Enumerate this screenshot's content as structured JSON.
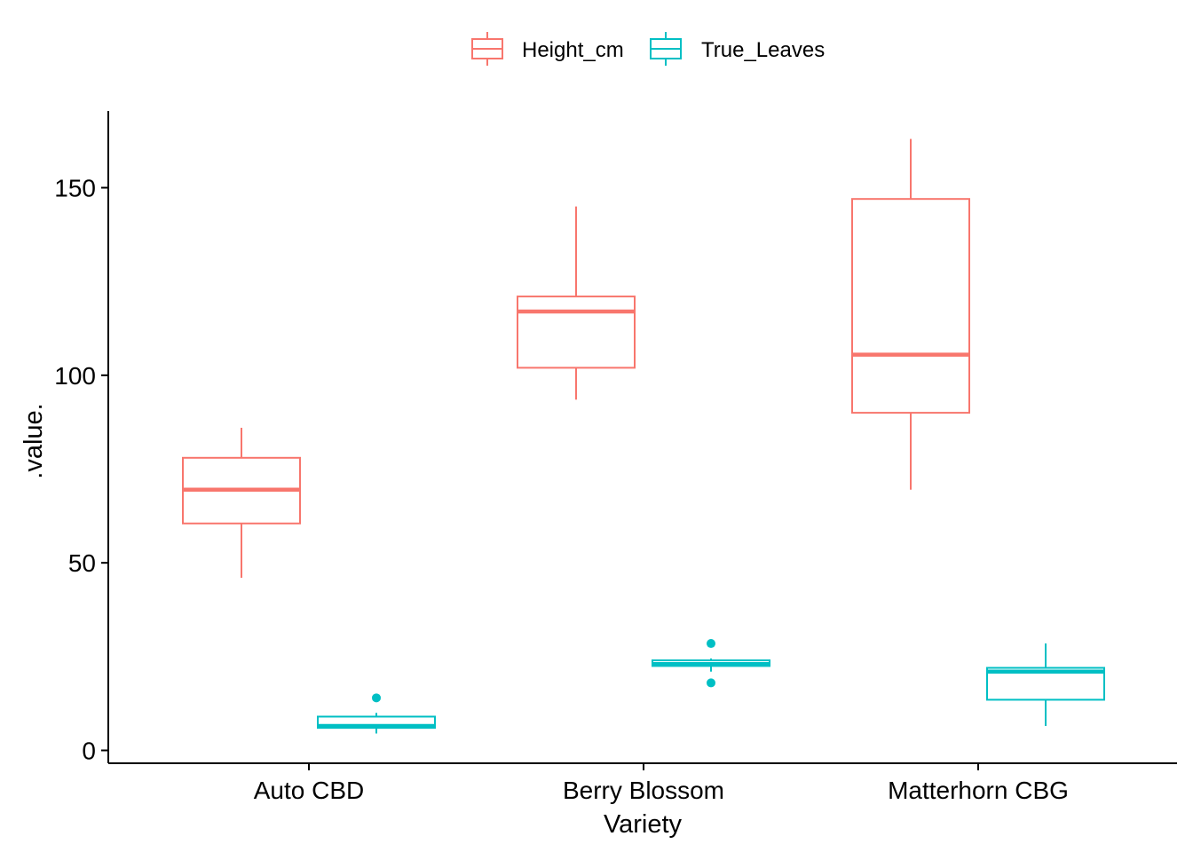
{
  "chart_data": {
    "type": "boxplot",
    "title": "",
    "xlabel": "Variety",
    "ylabel": ".value.",
    "ylim": [
      -3,
      170
    ],
    "yticks": [
      0,
      50,
      100,
      150
    ],
    "categories": [
      "Auto CBD",
      "Berry Blossom",
      "Matterhorn CBG"
    ],
    "legend": {
      "position": "top",
      "entries": [
        "Height_cm",
        "True_Leaves"
      ]
    },
    "grid": false,
    "series": [
      {
        "name": "Height_cm",
        "color": "#F8766D",
        "boxes": [
          {
            "category": "Auto CBD",
            "min": 46,
            "q1": 60.5,
            "median": 69.5,
            "q3": 78,
            "max": 86,
            "outliers": []
          },
          {
            "category": "Berry Blossom",
            "min": 93.5,
            "q1": 102,
            "median": 117,
            "q3": 121,
            "max": 145,
            "outliers": []
          },
          {
            "category": "Matterhorn CBG",
            "min": 69.5,
            "q1": 90,
            "median": 105.5,
            "q3": 147,
            "max": 163,
            "outliers": []
          }
        ]
      },
      {
        "name": "True_Leaves",
        "color": "#00BFC4",
        "boxes": [
          {
            "category": "Auto CBD",
            "min": 4.5,
            "q1": 6,
            "median": 6.5,
            "q3": 9,
            "max": 10,
            "outliers": [
              14
            ]
          },
          {
            "category": "Berry Blossom",
            "min": 21,
            "q1": 22.5,
            "median": 23,
            "q3": 24,
            "max": 24.5,
            "outliers": [
              28.5,
              18
            ]
          },
          {
            "category": "Matterhorn CBG",
            "min": 6.5,
            "q1": 13.5,
            "median": 21,
            "q3": 22,
            "max": 28.5,
            "outliers": []
          }
        ]
      }
    ]
  }
}
